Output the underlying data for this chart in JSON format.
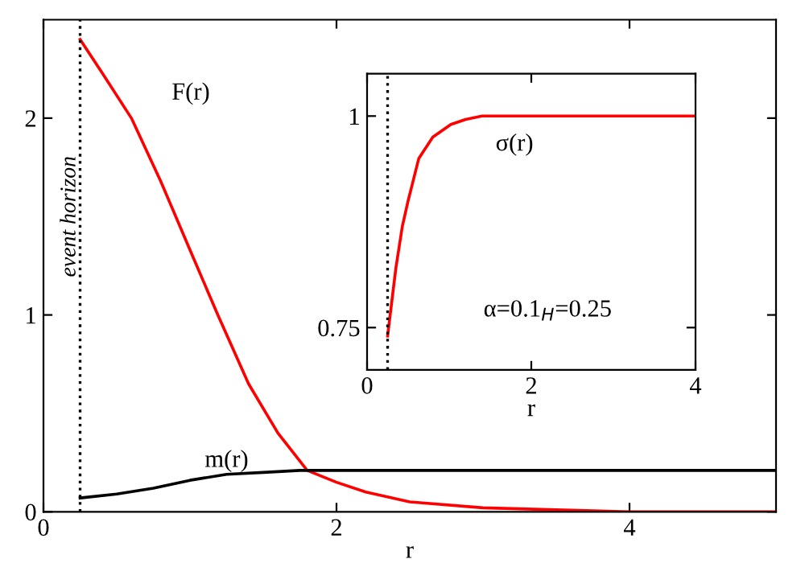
{
  "chart_data": [
    {
      "type": "line",
      "xlabel": "r",
      "xlim": [
        0,
        5
      ],
      "ylim": [
        0,
        2.5
      ],
      "xticks": [
        0,
        2,
        4
      ],
      "yticks": [
        0,
        1,
        2
      ],
      "grid": false,
      "legend": false,
      "ref_lines": [
        {
          "axis": "x",
          "value": 0.25,
          "label": "event horizon",
          "color": "#000000",
          "line_style": "dotted"
        }
      ],
      "series": [
        {
          "name": "F(r)",
          "color": "#ff0000",
          "x": [
            0.25,
            0.4,
            0.6,
            0.8,
            1.0,
            1.19,
            1.4,
            1.6,
            1.8,
            2.0,
            2.2,
            2.5,
            3.0,
            3.5,
            4.0,
            5.0
          ],
          "values": [
            2.4,
            2.23,
            2.0,
            1.68,
            1.33,
            1.0,
            0.65,
            0.4,
            0.21,
            0.15,
            0.1,
            0.05,
            0.02,
            0.01,
            0,
            0
          ]
        },
        {
          "name": "m(r)",
          "color": "#000000",
          "x": [
            0.25,
            0.5,
            0.75,
            1.0,
            1.25,
            1.5,
            1.75,
            2.0,
            3.0,
            5.0
          ],
          "values": [
            0.07,
            0.09,
            0.12,
            0.16,
            0.19,
            0.2,
            0.21,
            0.21,
            0.21,
            0.21
          ]
        }
      ]
    },
    {
      "type": "line",
      "xlabel": "r",
      "xlim": [
        0,
        4
      ],
      "ylim": [
        0.7,
        1.05
      ],
      "xticks": [
        0,
        2,
        4
      ],
      "yticks": [
        0.75,
        1
      ],
      "grid": false,
      "legend": false,
      "annotations": [
        "α=0.1$_{H}$=0.25"
      ],
      "ref_lines": [
        {
          "axis": "x",
          "value": 0.25,
          "color": "#000000",
          "line_style": "dotted"
        }
      ],
      "series": [
        {
          "name": "σ(r)",
          "color": "#ff0000",
          "x": [
            0.25,
            0.3,
            0.35,
            0.43,
            0.5,
            0.63,
            0.8,
            1.02,
            1.2,
            1.4,
            2.0,
            4.0
          ],
          "values": [
            0.74,
            0.78,
            0.82,
            0.87,
            0.9,
            0.95,
            0.975,
            0.99,
            0.996,
            1.0,
            1.0,
            1.0
          ]
        }
      ]
    }
  ]
}
